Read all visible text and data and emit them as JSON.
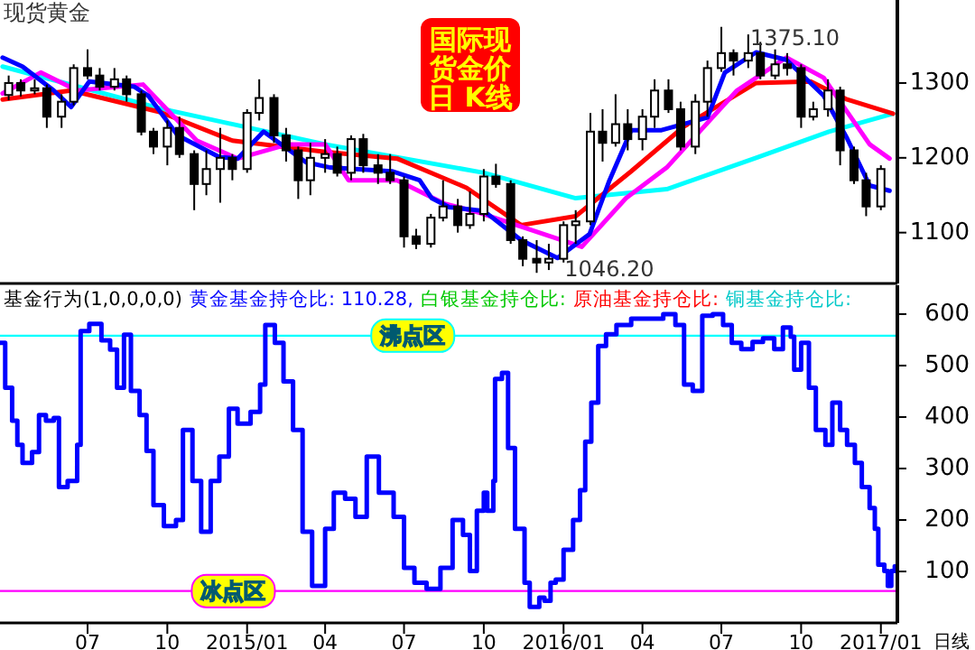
{
  "chart_data": [
    {
      "type": "candlestick",
      "title": "现货黄金",
      "xlim": [
        "2014-03-22",
        "2017-01-20"
      ],
      "ylim": [
        1032,
        1411
      ],
      "yticks": [
        1100,
        1200,
        1300
      ],
      "tick_labels": "y",
      "color": "#000000",
      "x": [
        "2014-04-01",
        "2014-04-15",
        "2014-05-01",
        "2014-05-15",
        "2014-06-01",
        "2014-06-15",
        "2014-07-01",
        "2014-07-15",
        "2014-08-01",
        "2014-08-15",
        "2014-09-01",
        "2014-09-15",
        "2014-10-01",
        "2014-10-15",
        "2014-11-01",
        "2014-11-15",
        "2014-12-01",
        "2014-12-15",
        "2015-01-01",
        "2015-01-15",
        "2015-02-01",
        "2015-02-15",
        "2015-03-01",
        "2015-03-15",
        "2015-04-01",
        "2015-04-15",
        "2015-05-01",
        "2015-05-15",
        "2015-06-01",
        "2015-06-15",
        "2015-07-01",
        "2015-07-15",
        "2015-08-01",
        "2015-08-15",
        "2015-09-01",
        "2015-09-15",
        "2015-10-01",
        "2015-10-15",
        "2015-11-01",
        "2015-11-15",
        "2015-12-01",
        "2015-12-15",
        "2016-01-01",
        "2016-01-15",
        "2016-02-01",
        "2016-02-15",
        "2016-03-01",
        "2016-03-15",
        "2016-04-01",
        "2016-04-15",
        "2016-05-01",
        "2016-05-15",
        "2016-06-01",
        "2016-06-15",
        "2016-07-01",
        "2016-07-15",
        "2016-08-01",
        "2016-08-15",
        "2016-09-01",
        "2016-09-15",
        "2016-10-01",
        "2016-10-15",
        "2016-11-01",
        "2016-11-15",
        "2016-12-01",
        "2016-12-15",
        "2017-01-01"
      ],
      "ohlc": [
        [
          1284,
          1310,
          1277,
          1300
        ],
        [
          1300,
          1305,
          1282,
          1290
        ],
        [
          1290,
          1305,
          1285,
          1293
        ],
        [
          1293,
          1298,
          1240,
          1255
        ],
        [
          1255,
          1285,
          1240,
          1275
        ],
        [
          1275,
          1325,
          1270,
          1320
        ],
        [
          1320,
          1345,
          1305,
          1310
        ],
        [
          1310,
          1320,
          1290,
          1295
        ],
        [
          1295,
          1320,
          1290,
          1305
        ],
        [
          1305,
          1310,
          1275,
          1285
        ],
        [
          1285,
          1290,
          1230,
          1235
        ],
        [
          1235,
          1240,
          1205,
          1215
        ],
        [
          1215,
          1250,
          1190,
          1240
        ],
        [
          1240,
          1255,
          1200,
          1205
        ],
        [
          1205,
          1210,
          1130,
          1165
        ],
        [
          1165,
          1210,
          1150,
          1185
        ],
        [
          1185,
          1240,
          1140,
          1200
        ],
        [
          1200,
          1205,
          1170,
          1185
        ],
        [
          1185,
          1265,
          1180,
          1260
        ],
        [
          1260,
          1305,
          1250,
          1280
        ],
        [
          1280,
          1285,
          1220,
          1230
        ],
        [
          1230,
          1240,
          1195,
          1210
        ],
        [
          1210,
          1215,
          1145,
          1170
        ],
        [
          1170,
          1220,
          1150,
          1200
        ],
        [
          1200,
          1225,
          1180,
          1205
        ],
        [
          1205,
          1215,
          1175,
          1180
        ],
        [
          1180,
          1230,
          1170,
          1225
        ],
        [
          1225,
          1232,
          1180,
          1190
        ],
        [
          1190,
          1205,
          1165,
          1180
        ],
        [
          1180,
          1205,
          1165,
          1170
        ],
        [
          1170,
          1175,
          1080,
          1095
        ],
        [
          1095,
          1105,
          1078,
          1085
        ],
        [
          1085,
          1125,
          1080,
          1120
        ],
        [
          1120,
          1170,
          1115,
          1135
        ],
        [
          1135,
          1145,
          1100,
          1110
        ],
        [
          1110,
          1155,
          1105,
          1125
        ],
        [
          1125,
          1185,
          1115,
          1175
        ],
        [
          1175,
          1192,
          1160,
          1165
        ],
        [
          1165,
          1170,
          1085,
          1090
        ],
        [
          1090,
          1095,
          1055,
          1065
        ],
        [
          1065,
          1090,
          1046.2,
          1060
        ],
        [
          1060,
          1085,
          1050,
          1065
        ],
        [
          1065,
          1115,
          1060,
          1110
        ],
        [
          1110,
          1130,
          1085,
          1115
        ],
        [
          1115,
          1260,
          1110,
          1235
        ],
        [
          1235,
          1265,
          1195,
          1220
        ],
        [
          1220,
          1285,
          1215,
          1245
        ],
        [
          1245,
          1265,
          1210,
          1225
        ],
        [
          1225,
          1265,
          1210,
          1255
        ],
        [
          1255,
          1305,
          1240,
          1290
        ],
        [
          1290,
          1305,
          1260,
          1265
        ],
        [
          1265,
          1275,
          1210,
          1215
        ],
        [
          1215,
          1285,
          1205,
          1275
        ],
        [
          1275,
          1330,
          1255,
          1320
        ],
        [
          1320,
          1375.1,
          1315,
          1340
        ],
        [
          1340,
          1345,
          1310,
          1330
        ],
        [
          1330,
          1365,
          1320,
          1340
        ],
        [
          1340,
          1355,
          1305,
          1310
        ],
        [
          1310,
          1345,
          1305,
          1325
        ],
        [
          1325,
          1340,
          1310,
          1320
        ],
        [
          1320,
          1325,
          1240,
          1255
        ],
        [
          1255,
          1275,
          1250,
          1265
        ],
        [
          1265,
          1305,
          1255,
          1290
        ],
        [
          1290,
          1295,
          1190,
          1210
        ],
        [
          1210,
          1215,
          1165,
          1170
        ],
        [
          1170,
          1180,
          1122,
          1135
        ],
        [
          1135,
          1190,
          1130,
          1185
        ]
      ],
      "series": [
        {
          "type": "line",
          "color": "#00ffff",
          "x": [
            "2014-03-25",
            "2014-09-23",
            "2015-04-01",
            "2015-10-01",
            "2016-01-15",
            "2016-04-29",
            "2016-08-10",
            "2016-11-02",
            "2017-01-15"
          ],
          "values": [
            1322,
            1266,
            1218,
            1180,
            1146,
            1158,
            1200,
            1235,
            1259
          ]
        },
        {
          "type": "line",
          "color": "#ff0000",
          "x": [
            "2014-03-25",
            "2014-06-12",
            "2014-09-23",
            "2014-12-15",
            "2015-04-01",
            "2015-06-23",
            "2015-09-11",
            "2015-11-13",
            "2016-01-15",
            "2016-03-19",
            "2016-05-19",
            "2016-08-10",
            "2016-10-12",
            "2016-11-23",
            "2017-01-15"
          ],
          "values": [
            1278,
            1290,
            1261,
            1223,
            1208,
            1199,
            1160,
            1110,
            1122,
            1182,
            1242,
            1300,
            1302,
            1278,
            1259
          ]
        },
        {
          "type": "line",
          "color": "#ff00ff",
          "x": [
            "2014-03-25",
            "2014-05-08",
            "2014-06-19",
            "2014-09-03",
            "2014-11-04",
            "2014-12-21",
            "2015-02-17",
            "2015-04-01",
            "2015-04-28",
            "2015-06-23",
            "2015-08-16",
            "2015-09-25",
            "2016-01-22",
            "2016-03-13",
            "2016-04-29",
            "2016-07-19",
            "2016-09-14",
            "2016-10-27",
            "2016-12-19",
            "2017-01-11"
          ],
          "values": [
            1286,
            1314,
            1290,
            1298,
            1223,
            1199,
            1218,
            1218,
            1170,
            1170,
            1139,
            1127,
            1081,
            1146,
            1187,
            1290,
            1334,
            1307,
            1218,
            1199
          ]
        },
        {
          "type": "line",
          "color": "#0000ff",
          "x": [
            "2014-03-25",
            "2014-04-17",
            "2014-05-23",
            "2014-06-12",
            "2014-07-03",
            "2014-08-24",
            "2014-09-09",
            "2014-10-13",
            "2014-11-30",
            "2014-12-21",
            "2015-01-20",
            "2015-03-10",
            "2015-04-07",
            "2015-06-17",
            "2015-07-19",
            "2015-08-02",
            "2015-08-22",
            "2015-10-01",
            "2015-11-13",
            "2015-12-25",
            "2016-01-31",
            "2016-02-23",
            "2016-03-19",
            "2016-04-23",
            "2016-06-15",
            "2016-07-05",
            "2016-08-10",
            "2016-09-14",
            "2016-10-27",
            "2016-11-23",
            "2016-12-19",
            "2017-01-11"
          ],
          "values": [
            1334,
            1322,
            1290,
            1268,
            1302,
            1295,
            1283,
            1230,
            1201,
            1199,
            1235,
            1194,
            1187,
            1182,
            1170,
            1146,
            1134,
            1129,
            1090,
            1066,
            1098,
            1170,
            1237,
            1237,
            1254,
            1314,
            1341,
            1331,
            1283,
            1226,
            1163,
            1156
          ]
        }
      ],
      "annotations": [
        "国际现货金价日 K线",
        {
          "text": "1375.10",
          "x": "2016-07-05",
          "y": 1375.1
        },
        {
          "text": "1046.20",
          "x": "2015-12-04",
          "y": 1046.2
        }
      ]
    },
    {
      "type": "step",
      "title": "基金行为(1,0,0,0,0)",
      "legend": "top",
      "xlim": [
        "2014-03-22",
        "2017-01-20"
      ],
      "ylim": [
        0,
        656
      ],
      "yticks": [
        100,
        200,
        300,
        400,
        500,
        600
      ],
      "xticks": [
        {
          "value": "2014-07-01",
          "label": "07"
        },
        {
          "value": "2014-10-01",
          "label": "10"
        },
        {
          "value": "2015-01-01",
          "label": "2015/01"
        },
        {
          "value": "2015-04-01",
          "label": "04"
        },
        {
          "value": "2015-07-01",
          "label": "07"
        },
        {
          "value": "2015-10-01",
          "label": "10"
        },
        {
          "value": "2016-01-01",
          "label": "2016/01"
        },
        {
          "value": "2016-04-01",
          "label": "04"
        },
        {
          "value": "2016-07-01",
          "label": "07"
        },
        {
          "value": "2016-10-01",
          "label": "10"
        },
        {
          "value": "2017-01-01",
          "label": "2017/01"
        }
      ],
      "ref_lines": [
        {
          "axis": "y",
          "value": 558,
          "label": "沸点区",
          "color": "#00ffff"
        },
        {
          "axis": "y",
          "value": 62,
          "label": "冰点区",
          "color": "#ff00ff"
        }
      ],
      "series": [
        {
          "name": "黄金基金持仓比: 110.28,",
          "color": "#0000ff",
          "x": [
            "2014-03-22",
            "2014-03-28",
            "2014-04-05",
            "2014-04-11",
            "2014-04-17",
            "2014-04-28",
            "2014-05-06",
            "2014-05-14",
            "2014-05-23",
            "2014-05-29",
            "2014-06-08",
            "2014-06-19",
            "2014-06-23",
            "2014-07-03",
            "2014-07-17",
            "2014-07-27",
            "2014-08-04",
            "2014-08-12",
            "2014-08-20",
            "2014-08-30",
            "2014-09-07",
            "2014-09-15",
            "2014-09-27",
            "2014-10-11",
            "2014-10-19",
            "2014-10-30",
            "2014-11-09",
            "2014-11-20",
            "2014-11-30",
            "2014-12-11",
            "2014-12-21",
            "2015-01-05",
            "2015-01-16",
            "2015-01-22",
            "2015-02-02",
            "2015-02-12",
            "2015-02-23",
            "2015-03-06",
            "2015-03-17",
            "2015-04-01",
            "2015-04-11",
            "2015-04-24",
            "2015-05-06",
            "2015-05-19",
            "2015-06-02",
            "2015-06-19",
            "2015-07-01",
            "2015-07-13",
            "2015-07-27",
            "2015-08-12",
            "2015-08-26",
            "2015-09-07",
            "2015-09-15",
            "2015-09-23",
            "2015-10-01",
            "2015-10-05",
            "2015-10-12",
            "2015-10-14",
            "2015-10-22",
            "2015-10-29",
            "2015-11-06",
            "2015-11-17",
            "2015-11-23",
            "2015-12-04",
            "2015-12-10",
            "2015-12-17",
            "2015-12-23",
            "2016-01-01",
            "2016-01-12",
            "2016-01-20",
            "2016-01-26",
            "2016-02-02",
            "2016-02-10",
            "2016-02-19",
            "2016-03-02",
            "2016-03-19",
            "2016-04-09",
            "2016-04-25",
            "2016-05-09",
            "2016-05-19",
            "2016-05-29",
            "2016-06-09",
            "2016-06-21",
            "2016-07-03",
            "2016-07-13",
            "2016-07-24",
            "2016-08-06",
            "2016-08-18",
            "2016-08-31",
            "2016-09-10",
            "2016-09-19",
            "2016-09-23",
            "2016-10-01",
            "2016-10-10",
            "2016-10-18",
            "2016-10-29",
            "2016-11-06",
            "2016-11-15",
            "2016-11-23",
            "2016-12-02",
            "2016-12-10",
            "2016-12-19",
            "2016-12-25",
            "2016-12-29",
            "2017-01-05",
            "2017-01-09",
            "2017-01-13",
            "2017-01-17"
          ],
          "values": [
            544,
            457,
            393,
            346,
            311,
            332,
            404,
            393,
            398,
            264,
            276,
            346,
            567,
            581,
            549,
            531,
            457,
            560,
            451,
            404,
            334,
            229,
            188,
            200,
            375,
            276,
            177,
            276,
            323,
            416,
            387,
            410,
            463,
            579,
            544,
            469,
            375,
            177,
            72,
            183,
            253,
            241,
            206,
            323,
            253,
            206,
            107,
            78,
            66,
            107,
            200,
            171,
            101,
            218,
            253,
            218,
            276,
            474,
            486,
            340,
            183,
            78,
            31,
            49,
            43,
            78,
            84,
            142,
            200,
            258,
            352,
            428,
            538,
            561,
            579,
            591,
            591,
            600,
            579,
            463,
            451,
            597,
            600,
            579,
            544,
            532,
            546,
            553,
            532,
            574,
            556,
            492,
            544,
            457,
            375,
            346,
            428,
            375,
            346,
            311,
            264,
            223,
            183,
            113,
            101,
            72,
            101,
            110.28
          ]
        },
        {
          "name": "白银基金持仓比:",
          "color": "#00c800"
        },
        {
          "name": "原油基金持仓比:",
          "color": "#ff0000"
        },
        {
          "name": "铜基金持仓比:",
          "color": "#00c8c8"
        }
      ],
      "annotations": [
        "日线"
      ]
    }
  ]
}
